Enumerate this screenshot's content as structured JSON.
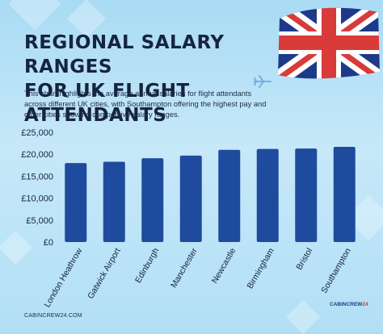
{
  "title_line1": "REGIONAL SALARY RANGES",
  "title_line2": "FOR UK FLIGHT ATTENDANTS",
  "description": "This chart highlights the average annual salaries for flight attendants across different UK cities, with Southampton offering the highest pay and other cities showing competitive salary ranges.",
  "footer_url": "CABINCREW24.COM",
  "logo_text": "CABINCREW",
  "logo_suffix": "24",
  "colors": {
    "bar": "#1f4b9e",
    "title": "#16243f",
    "flag_blue": "#1d3a8a",
    "flag_red": "#d93a3a",
    "plane": "#6fb0e6"
  },
  "icons": [
    "uk-flag-icon",
    "airplane-icon"
  ],
  "chart_data": {
    "type": "bar",
    "categories": [
      "London Heathrow",
      "Gatwick Airport",
      "Edinburgh",
      "Manchester",
      "Newcastle",
      "Birmingham",
      "Bristol",
      "Southampton"
    ],
    "values": [
      18000,
      18300,
      19100,
      19700,
      21000,
      21200,
      21300,
      21700
    ],
    "yticks": [
      "£0",
      "£5,000",
      "£10,000",
      "£15,000",
      "£20,000",
      "£25,000"
    ],
    "ylim": [
      0,
      25000
    ],
    "grid": false
  }
}
